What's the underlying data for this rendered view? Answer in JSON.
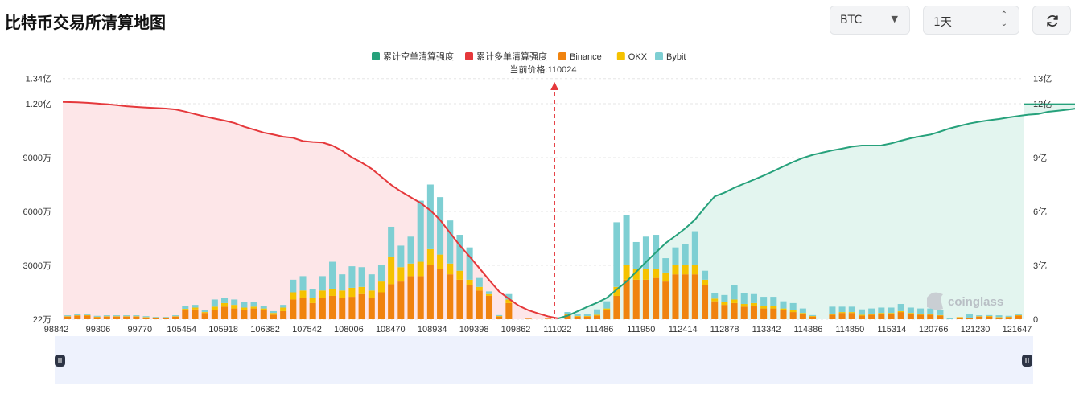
{
  "page": {
    "title": "比特币交易所清算地图",
    "coin_select": "BTC",
    "period_select": "1天"
  },
  "legend": {
    "items": [
      {
        "label": "累计空单清算强度",
        "color": "#26a17b"
      },
      {
        "label": "累计多单清算强度",
        "color": "#e5383b"
      },
      {
        "label": "Binance",
        "color": "#f0830f"
      },
      {
        "label": "OKX",
        "color": "#f5c200"
      },
      {
        "label": "Bybit",
        "color": "#7ecfd3"
      }
    ]
  },
  "current_price_label": "当前价格:110024",
  "watermark": "coinglass",
  "chart_data": {
    "type": "bar",
    "x_tick_labels": [
      "98842",
      "99306",
      "99770",
      "105454",
      "105918",
      "106382",
      "107542",
      "108006",
      "108470",
      "108934",
      "109398",
      "109862",
      "111022",
      "111486",
      "111950",
      "112414",
      "112878",
      "113342",
      "114386",
      "114850",
      "115314",
      "120766",
      "121230",
      "121647"
    ],
    "y_left_ticks": [
      "22万",
      "3000万",
      "6000万",
      "9000万",
      "1.20亿",
      "1.34亿"
    ],
    "y_right_ticks": [
      "0",
      "3亿",
      "6亿",
      "9亿",
      "12亿",
      "13亿"
    ],
    "y_left_range": [
      2200000,
      134000000
    ],
    "y_right_range": [
      0,
      1300000000
    ],
    "current_price": 110024,
    "current_price_index": 50,
    "series": [
      {
        "name": "Binance",
        "color": "#f0830f",
        "values": [
          1.5,
          2,
          2,
          1.2,
          1.5,
          1.5,
          1.5,
          1.5,
          1,
          0.8,
          0.8,
          1.5,
          5,
          5.5,
          3.5,
          5,
          7,
          6,
          5,
          6,
          5,
          2.5,
          4.5,
          11,
          12,
          9,
          12,
          13,
          12,
          12.5,
          14,
          12,
          15,
          19.5,
          21,
          24,
          24,
          30,
          28,
          25,
          22,
          19,
          16,
          13,
          1.5,
          9,
          0,
          0.3,
          0,
          0.3,
          0,
          2.5,
          1.5,
          1.5,
          2,
          5,
          13,
          22,
          22,
          22,
          23,
          21,
          25,
          25,
          25,
          19,
          10,
          8,
          9,
          7,
          7.5,
          6,
          6,
          5,
          4,
          3,
          1.5,
          0,
          2.5,
          3.5,
          3.5,
          2,
          2.5,
          3,
          3,
          4,
          3,
          2.5,
          2.5,
          2,
          0,
          1,
          0.5,
          1.5,
          1.5,
          1,
          1.2,
          2
        ]
      },
      {
        "name": "OKX",
        "color": "#f5c200",
        "values": [
          0.2,
          0.2,
          0.3,
          0.2,
          0.2,
          0.2,
          0.2,
          0.2,
          0.2,
          0.2,
          0.2,
          0.2,
          0.8,
          1,
          0.5,
          2,
          2,
          2,
          1.5,
          1,
          1,
          1,
          2,
          4,
          4,
          3,
          4,
          4,
          4,
          5,
          4,
          4,
          6,
          15,
          8,
          7,
          8,
          9,
          8,
          6,
          5,
          3,
          2,
          1,
          0.3,
          2,
          0,
          0,
          0,
          0,
          0,
          0.5,
          0.3,
          0.3,
          0.5,
          1,
          5,
          8,
          6,
          6,
          5,
          5,
          5,
          5,
          5,
          3,
          1.5,
          1.5,
          2,
          1.5,
          1.5,
          1.5,
          1.5,
          1,
          1,
          0.5,
          0.3,
          0,
          0.5,
          0.5,
          0.5,
          0.5,
          0.5,
          0.5,
          0.5,
          0.5,
          0.5,
          0.5,
          0.5,
          0.3,
          0,
          0.2,
          0.2,
          0.2,
          0.3,
          0.2,
          0.2,
          0.3
        ]
      },
      {
        "name": "Bybit",
        "color": "#7ecfd3",
        "values": [
          0.5,
          0.5,
          0.5,
          0.5,
          0.5,
          0.5,
          0.5,
          0.5,
          0.5,
          0.3,
          0.3,
          0.5,
          1.5,
          1.5,
          1,
          4,
          3,
          3,
          3,
          2.5,
          1.5,
          1,
          1.5,
          7,
          8,
          5,
          8,
          15,
          9,
          12,
          11,
          9,
          9,
          17,
          12,
          15,
          34,
          36,
          32,
          24,
          20,
          18,
          5,
          1.5,
          0.5,
          3,
          0,
          0,
          0,
          0,
          0,
          1,
          1,
          1,
          3,
          4,
          36,
          28,
          15,
          18,
          19,
          8,
          10,
          12,
          19,
          5,
          3,
          4,
          8,
          6,
          5,
          5,
          5,
          4,
          4,
          2.5,
          0.5,
          0,
          4,
          3,
          3,
          3,
          3,
          3,
          3,
          4,
          3,
          3,
          3,
          3,
          0.5,
          0,
          2,
          0.5,
          0.5,
          1,
          0.5,
          0.5,
          0.5
        ]
      }
    ],
    "cumulative_long_liquidation": [
      121,
      120.8,
      120.5,
      120.1,
      119.7,
      119.2,
      118.6,
      118.2,
      117.9,
      117.6,
      117.3,
      116.8,
      115.6,
      114.2,
      112.9,
      111.7,
      110.6,
      109.3,
      107.2,
      105.6,
      103.9,
      102.8,
      101.6,
      101,
      99.2,
      98.7,
      98.4,
      96.7,
      93.8,
      90.1,
      87.2,
      83.8,
      79.3,
      74.8,
      71.1,
      67.9,
      64.7,
      60.6,
      55.2,
      48.1,
      41.1,
      34.9,
      28.4,
      21.8,
      15.5,
      11.4,
      7.6,
      5,
      3.2,
      1.6,
      0.5
    ],
    "cumulative_short_liquidation": [
      0.4,
      2,
      4.4,
      6.9,
      9.2,
      11.9,
      16.5,
      21,
      26.4,
      31.9,
      37.2,
      42.4,
      46.4,
      50.6,
      55.5,
      62.2,
      68.4,
      70.5,
      73.2,
      75.5,
      77.7,
      80,
      82.5,
      85.1,
      87.6,
      89.8,
      91.5,
      92.8,
      94,
      95,
      96.1,
      96.7,
      96.7,
      96.8,
      97.9,
      99.4,
      100.8,
      101.9,
      102.8,
      104.5,
      106.3,
      107.7,
      109,
      110,
      110.8,
      111.5,
      112.4,
      113.2,
      113.9,
      114.3,
      115.5,
      116.1,
      116.7,
      117.4,
      118,
      118.6,
      119.2,
      119.7
    ]
  }
}
